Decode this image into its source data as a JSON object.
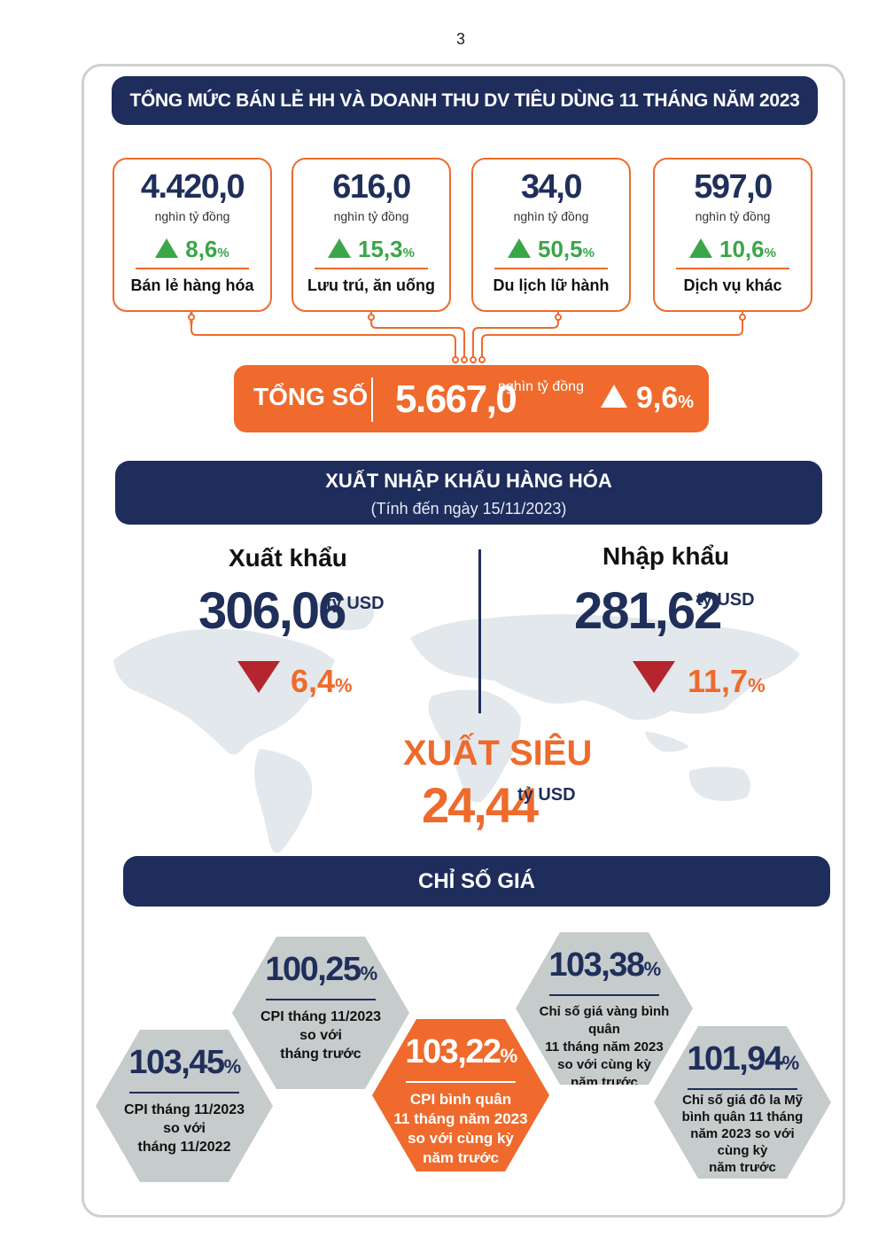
{
  "page_number": "3",
  "retail": {
    "title": "TỔNG MỨC BÁN LẺ HH VÀ DOANH THU DV TIÊU DÙNG 11 THÁNG NĂM 2023",
    "cards": [
      {
        "value": "4.420,0",
        "unit": "nghìn tỷ đồng",
        "growth": "8,6",
        "growth_unit": "%",
        "label": "Bán lẻ hàng hóa"
      },
      {
        "value": "616,0",
        "unit": "nghìn tỷ đồng",
        "growth": "15,3",
        "growth_unit": "%",
        "label": "Lưu trú, ăn uống"
      },
      {
        "value": "34,0",
        "unit": "nghìn tỷ đồng",
        "growth": "50,5",
        "growth_unit": "%",
        "label": "Du lịch lữ hành"
      },
      {
        "value": "597,0",
        "unit": "nghìn tỷ đồng",
        "growth": "10,6",
        "growth_unit": "%",
        "label": "Dịch vụ khác"
      }
    ],
    "total": {
      "label": "TỔNG SỐ",
      "value": "5.667,0",
      "unit": "nghìn tỷ đồng",
      "growth": "9,6",
      "growth_unit": "%"
    }
  },
  "trade": {
    "title": "XUẤT NHẬP KHẨU HÀNG HÓA",
    "subtitle": "(Tính đến ngày 15/11/2023)",
    "export": {
      "label": "Xuất khẩu",
      "value": "306,06",
      "unit": "tỷ USD",
      "change": "6,4",
      "change_unit": "%"
    },
    "import": {
      "label": "Nhập khẩu",
      "value": "281,62",
      "unit": "tỷ USD",
      "change": "11,7",
      "change_unit": "%"
    },
    "surplus": {
      "label": "XUẤT SIÊU",
      "value": "24,44",
      "unit": "tỷ USD"
    }
  },
  "price": {
    "title": "CHỈ SỐ GIÁ",
    "items": [
      {
        "value": "103,45",
        "unit": "%",
        "desc": [
          "CPI tháng 11/2023",
          "so với",
          "tháng 11/2022"
        ]
      },
      {
        "value": "100,25",
        "unit": "%",
        "desc": [
          "CPI tháng 11/2023",
          "so với",
          "tháng trước"
        ]
      },
      {
        "value": "103,22",
        "unit": "%",
        "desc": [
          "CPI bình quân",
          "11 tháng năm 2023",
          "so với cùng kỳ",
          "năm trước"
        ]
      },
      {
        "value": "103,38",
        "unit": "%",
        "desc": [
          "Chỉ số giá vàng bình quân",
          "11 tháng năm 2023",
          "so với cùng kỳ",
          "năm trước"
        ]
      },
      {
        "value": "101,94",
        "unit": "%",
        "desc": [
          "Chỉ số giá đô la Mỹ",
          "bình quân 11 tháng",
          "năm 2023 so với",
          "cùng kỳ",
          "năm trước"
        ]
      }
    ]
  },
  "colors": {
    "navy": "#1e2d5c",
    "orange": "#ef6a2c",
    "green": "#3aa648",
    "red": "#b5252e",
    "grey": "#c6cbcc"
  }
}
